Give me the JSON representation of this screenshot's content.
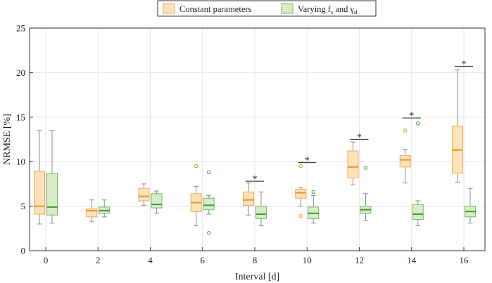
{
  "chart_data": {
    "type": "boxplot",
    "title": "",
    "xlabel": "Interval [d]",
    "ylabel": "NRMSE [%]",
    "ylim": [
      0,
      25
    ],
    "yticks": [
      0,
      5,
      10,
      15,
      20,
      25
    ],
    "categories": [
      "0",
      "2",
      "4",
      "6",
      "8",
      "10",
      "12",
      "14",
      "16"
    ],
    "grid": true,
    "legend_position": "top-center",
    "series": [
      {
        "name": "Constant parameters",
        "legend_label": "Constant parameters",
        "fill": "#fde3b8",
        "edge": "#f0a85a",
        "median_color": "#e8961e",
        "boxes": [
          {
            "category": "0",
            "whislo": 3.0,
            "q1": 4.1,
            "med": 5.0,
            "q3": 8.9,
            "whishi": 13.5,
            "fliers": []
          },
          {
            "category": "2",
            "whislo": 3.3,
            "q1": 3.8,
            "med": 4.5,
            "q3": 4.7,
            "whishi": 5.7,
            "fliers": []
          },
          {
            "category": "4",
            "whislo": 5.1,
            "q1": 5.6,
            "med": 6.1,
            "q3": 7.0,
            "whishi": 7.5,
            "fliers": []
          },
          {
            "category": "6",
            "whislo": 2.8,
            "q1": 4.4,
            "med": 5.4,
            "q3": 6.4,
            "whishi": 7.2,
            "fliers": [
              9.5
            ]
          },
          {
            "category": "8",
            "whislo": 4.0,
            "q1": 5.1,
            "med": 5.7,
            "q3": 6.6,
            "whishi": 7.6,
            "fliers": []
          },
          {
            "category": "10",
            "whislo": 5.0,
            "q1": 5.9,
            "med": 6.5,
            "q3": 6.9,
            "whishi": 7.1,
            "fliers": [
              9.5,
              3.9
            ]
          },
          {
            "category": "12",
            "whislo": 7.4,
            "q1": 8.2,
            "med": 9.4,
            "q3": 11.2,
            "whishi": 12.2,
            "fliers": []
          },
          {
            "category": "14",
            "whislo": 7.6,
            "q1": 9.4,
            "med": 10.2,
            "q3": 10.7,
            "whishi": 11.4,
            "fliers": [
              13.5
            ]
          },
          {
            "category": "16",
            "whislo": 7.7,
            "q1": 8.7,
            "med": 11.3,
            "q3": 14.0,
            "whishi": 20.3,
            "fliers": []
          }
        ]
      },
      {
        "name": "Varying f_s and gamma_d",
        "legend_label": "Varying f",
        "legend_sub1": "s",
        "legend_mid": " and γ",
        "legend_sub2": "d",
        "fill": "#d7ecc8",
        "edge": "#7bb661",
        "median_color": "#3f9a2c",
        "boxes": [
          {
            "category": "0",
            "whislo": 3.1,
            "q1": 4.0,
            "med": 4.9,
            "q3": 8.7,
            "whishi": 13.5,
            "fliers": []
          },
          {
            "category": "2",
            "whislo": 3.8,
            "q1": 4.2,
            "med": 4.5,
            "q3": 4.9,
            "whishi": 5.7,
            "fliers": []
          },
          {
            "category": "4",
            "whislo": 4.2,
            "q1": 4.8,
            "med": 5.2,
            "q3": 6.4,
            "whishi": 6.7,
            "fliers": []
          },
          {
            "category": "6",
            "whislo": 4.1,
            "q1": 4.6,
            "med": 5.1,
            "q3": 5.9,
            "whishi": 6.2,
            "fliers": [
              8.8,
              2.0
            ]
          },
          {
            "category": "8",
            "whislo": 2.8,
            "q1": 3.6,
            "med": 4.1,
            "q3": 5.0,
            "whishi": 6.6,
            "fliers": []
          },
          {
            "category": "10",
            "whislo": 3.1,
            "q1": 3.6,
            "med": 4.2,
            "q3": 4.9,
            "whishi": 6.2,
            "fliers": [
              6.6
            ]
          },
          {
            "category": "12",
            "whislo": 3.4,
            "q1": 4.2,
            "med": 4.6,
            "q3": 5.0,
            "whishi": 6.4,
            "fliers": [
              9.3
            ]
          },
          {
            "category": "14",
            "whislo": 2.8,
            "q1": 3.5,
            "med": 4.1,
            "q3": 5.2,
            "whishi": 5.6,
            "fliers": [
              14.3
            ]
          },
          {
            "category": "16",
            "whislo": 3.1,
            "q1": 3.8,
            "med": 4.4,
            "q3": 5.0,
            "whishi": 7.0,
            "fliers": []
          }
        ]
      }
    ],
    "significance": [
      {
        "category": "8",
        "y": 7.8,
        "label": "*"
      },
      {
        "category": "10",
        "y": 9.9,
        "label": "*"
      },
      {
        "category": "12",
        "y": 12.5,
        "label": "*"
      },
      {
        "category": "14",
        "y": 14.9,
        "label": "*"
      },
      {
        "category": "16",
        "y": 20.7,
        "label": "*"
      }
    ]
  }
}
